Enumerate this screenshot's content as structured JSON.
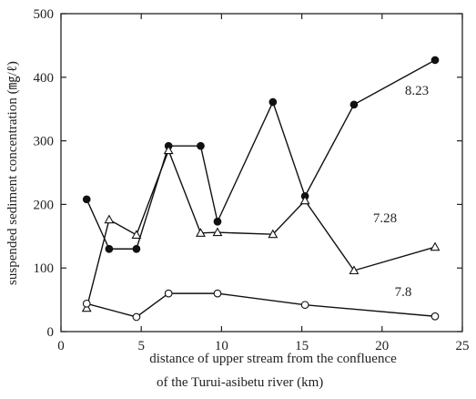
{
  "chart_data": {
    "type": "line",
    "y_label": "suspended sediment concentration (㎎/ℓ)",
    "x_label": [
      "distance of upper stream from the confluence",
      "of the Turui-asibetu river  (km)"
    ],
    "xlim": [
      0,
      25
    ],
    "xticks": [
      0,
      5,
      10,
      15,
      20,
      25
    ],
    "ylim": [
      0,
      500
    ],
    "yticks": [
      0,
      100,
      200,
      300,
      400,
      500
    ],
    "grid": false,
    "series": [
      {
        "name": "8.23",
        "color": "#111111",
        "marker": "filled-circle",
        "x": [
          1.6,
          3.0,
          4.7,
          6.7,
          8.7,
          9.75,
          13.2,
          15.2,
          18.25,
          23.3
        ],
        "values": [
          208,
          130,
          130,
          292,
          292,
          173,
          361,
          213,
          357,
          427
        ]
      },
      {
        "name": "7.28",
        "color": "#111111",
        "marker": "open-triangle",
        "x": [
          1.6,
          3.0,
          4.7,
          6.7,
          8.7,
          9.75,
          13.2,
          15.2,
          18.25,
          23.3
        ],
        "values": [
          37,
          176,
          152,
          285,
          155,
          156,
          153,
          206,
          96,
          133
        ]
      },
      {
        "name": "7.8",
        "color": "#111111",
        "marker": "open-circle",
        "x": [
          1.6,
          4.7,
          6.7,
          9.75,
          15.2,
          23.3
        ],
        "values": [
          44,
          23,
          60,
          60,
          42,
          24
        ]
      }
    ]
  }
}
